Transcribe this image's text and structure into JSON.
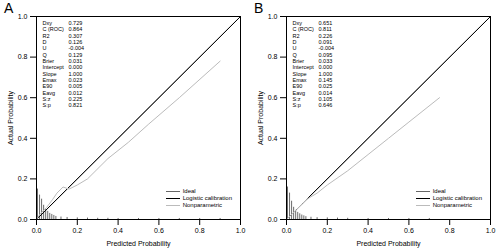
{
  "chart_data": [
    {
      "type": "line",
      "title": "A",
      "xlabel": "Predicted Probability",
      "ylabel": "Actual Probability",
      "xlim": [
        0,
        1
      ],
      "ylim": [
        0,
        1
      ],
      "xticks": [
        {
          "value": 0,
          "label": "0.0"
        },
        0.2,
        0.4,
        0.6,
        0.8,
        {
          "value": 1,
          "label": "1.0"
        }
      ],
      "yticks": [
        {
          "value": 0,
          "label": "0.0"
        },
        0.2,
        0.4,
        0.6,
        0.8,
        {
          "value": 1,
          "label": "1.0"
        }
      ],
      "grid": false,
      "legend": "bottom-right",
      "series": [
        {
          "name": "Ideal",
          "color": "#666666",
          "line_style": "solid",
          "x": [
            0,
            1
          ],
          "values": [
            0,
            1
          ]
        },
        {
          "name": "Logistic calibration",
          "color": "#000000",
          "line_style": "solid",
          "x": [
            0,
            1
          ],
          "values": [
            0,
            1
          ]
        },
        {
          "name": "Nonparametric",
          "color": "#bbbbbb",
          "line_style": "solid",
          "x": [
            0,
            0.02,
            0.05,
            0.08,
            0.1,
            0.13,
            0.16,
            0.2,
            0.25,
            0.35,
            0.45,
            0.55,
            0.7,
            0.9
          ],
          "values": [
            0,
            0.03,
            0.06,
            0.1,
            0.13,
            0.16,
            0.15,
            0.17,
            0.2,
            0.3,
            0.38,
            0.47,
            0.6,
            0.78
          ]
        }
      ],
      "histogram": {
        "x": [
          0.005,
          0.015,
          0.025,
          0.035,
          0.045,
          0.055,
          0.065,
          0.075,
          0.085,
          0.095,
          0.12,
          0.15,
          0.2,
          0.25,
          0.3,
          0.35,
          0.4,
          0.5,
          0.6,
          0.7,
          0.8,
          0.9
        ],
        "heights": [
          0.15,
          0.12,
          0.1,
          0.07,
          0.05,
          0.04,
          0.03,
          0.025,
          0.02,
          0.015,
          0.012,
          0.01,
          0.008,
          0.007,
          0.006,
          0.006,
          0.005,
          0.005,
          0.005,
          0.005,
          0.005,
          0.005
        ]
      },
      "stats": {
        "names": [
          "Dxy",
          "C (ROC)",
          "R2",
          "D",
          "U",
          "Q",
          "Brier",
          "Intercept",
          "Slope",
          "Emax",
          "E90",
          "Eavg",
          "S:z",
          "S:p"
        ],
        "values": [
          0.729,
          0.864,
          0.307,
          0.126,
          -0.004,
          0.129,
          0.031,
          0,
          1,
          0.023,
          0.005,
          0.012,
          0.225,
          0.821
        ],
        "value_labels": [
          "0.729",
          "0.864",
          "0.307",
          "0.126",
          "-0.004",
          "0.129",
          "0.031",
          "0.000",
          "1.000",
          "0.023",
          "0.005",
          "0.012",
          "0.225",
          "0.821"
        ]
      }
    },
    {
      "type": "line",
      "title": "B",
      "xlabel": "Predicted Probability",
      "ylabel": "Actual Probability",
      "xlim": [
        0,
        1
      ],
      "ylim": [
        0,
        1
      ],
      "xticks": [
        {
          "value": 0,
          "label": "0.0"
        },
        0.2,
        0.4,
        0.6,
        0.8,
        {
          "value": 1,
          "label": "1.0"
        }
      ],
      "yticks": [
        {
          "value": 0,
          "label": "0.0"
        },
        0.2,
        0.4,
        0.6,
        0.8,
        {
          "value": 1,
          "label": "1.0"
        }
      ],
      "grid": false,
      "legend": "bottom-right",
      "series": [
        {
          "name": "Ideal",
          "color": "#666666",
          "line_style": "solid",
          "x": [
            0,
            1
          ],
          "values": [
            0,
            1
          ]
        },
        {
          "name": "Logistic calibration",
          "color": "#000000",
          "line_style": "solid",
          "x": [
            0,
            1
          ],
          "values": [
            0,
            1
          ]
        },
        {
          "name": "Nonparametric",
          "color": "#bbbbbb",
          "line_style": "solid",
          "x": [
            0,
            0.02,
            0.05,
            0.08,
            0.1,
            0.15,
            0.2,
            0.3,
            0.4,
            0.5,
            0.6,
            0.75
          ],
          "values": [
            0,
            0.02,
            0.05,
            0.08,
            0.1,
            0.13,
            0.17,
            0.24,
            0.32,
            0.4,
            0.48,
            0.6
          ]
        }
      ],
      "histogram": {
        "x": [
          0.005,
          0.015,
          0.025,
          0.035,
          0.045,
          0.055,
          0.065,
          0.075,
          0.085,
          0.095,
          0.12,
          0.15,
          0.2,
          0.25,
          0.3,
          0.4,
          0.5,
          0.6,
          0.7
        ],
        "heights": [
          0.16,
          0.13,
          0.09,
          0.06,
          0.045,
          0.035,
          0.028,
          0.022,
          0.018,
          0.014,
          0.011,
          0.009,
          0.008,
          0.007,
          0.006,
          0.005,
          0.005,
          0.005,
          0.005
        ]
      },
      "stats": {
        "names": [
          "Dxy",
          "C (ROC)",
          "R2",
          "D",
          "U",
          "Q",
          "Brier",
          "Intercept",
          "Slope",
          "Emax",
          "E90",
          "Eavg",
          "S:z",
          "S:p"
        ],
        "values": [
          0.651,
          0.811,
          0.226,
          0.091,
          -0.004,
          0.095,
          0.033,
          0,
          1,
          0.145,
          0.025,
          0.014,
          0.105,
          0.646
        ],
        "value_labels": [
          "0.651",
          "0.811",
          "0.226",
          "0.091",
          "-0.004",
          "0.095",
          "0.033",
          "0.000",
          "1.000",
          "0.145",
          "0.025",
          "0.014",
          "0.105",
          "0.646"
        ]
      }
    }
  ]
}
